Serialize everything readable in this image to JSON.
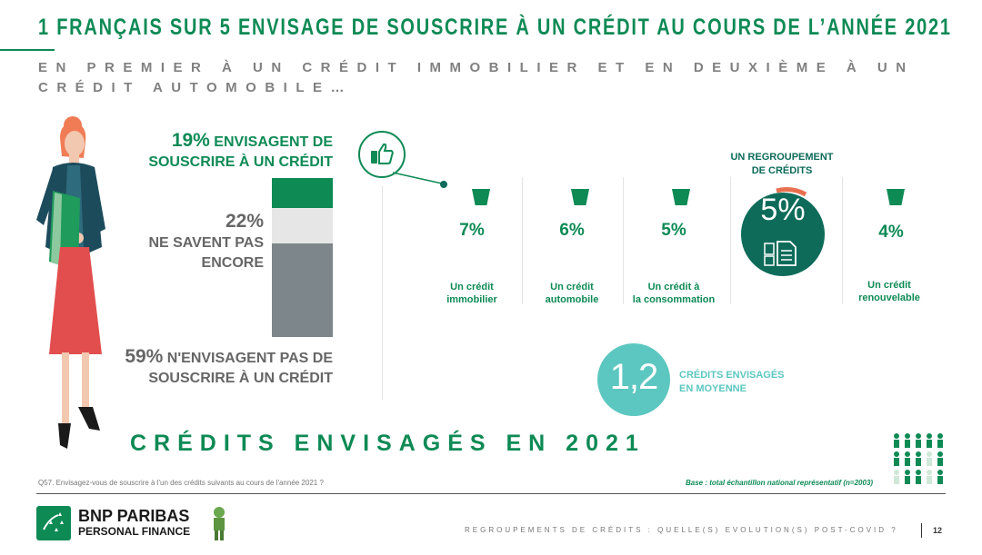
{
  "header": {
    "title": "1 FRANÇAIS SUR 5 ENVISAGE DE SOUSCRIRE À UN CRÉDIT AU COURS DE L’ANNÉE 2021",
    "subtitle": "EN PREMIER À UN CRÉDIT IMMOBILIER ET EN DEUXIÈME À UN CRÉDIT AUTOMOBILE…"
  },
  "stats": {
    "envisage": {
      "pct": "19%",
      "line1": " ENVISAGENT DE",
      "line2": "SOUSCRIRE À UN CRÉDIT",
      "value": 19,
      "color": "#0e8a55"
    },
    "unsure": {
      "pct": "22%",
      "line1": "NE SAVENT PAS",
      "line2": "ENCORE",
      "value": 22,
      "color": "#e6e6e6"
    },
    "not": {
      "pct": "59%",
      "line1": " N'ENVISAGENT PAS DE",
      "line2": "SOUSCRIRE À UN CRÉDIT",
      "value": 59,
      "color": "#7d868a"
    }
  },
  "credits": [
    {
      "pct": "7%",
      "label1": "Un crédit",
      "label2": "immobilier"
    },
    {
      "pct": "6%",
      "label1": "Un crédit",
      "label2": "automobile"
    },
    {
      "pct": "5%",
      "label1": "Un crédit à",
      "label2": "la consommation"
    },
    {
      "pct": "4%",
      "label1": "Un crédit",
      "label2": "renouvelable"
    }
  ],
  "regroupement": {
    "label1": "UN REGROUPEMENT",
    "label2": "DE CRÉDITS",
    "pct": "5%"
  },
  "average": {
    "value": "1,2",
    "label1": "CRÉDITS ENVISAGÉS",
    "label2": "EN MOYENNE"
  },
  "section_title": "CRÉDITS ENVISAGÉS EN 2021",
  "question": "Q57. Envisagez-vous de souscrire à l'un des crédits suivants au cours de l'année 2021 ?",
  "base": "Base : total échantillon national représentatif (n=2003)",
  "footer": {
    "brand1": "BNP PARIBAS",
    "brand2": "PERSONAL FINANCE",
    "tagline": "REGROUPEMENTS DE CRÉDITS : QUELLE(S) EVOLUTION(S) POST-COVID ?",
    "page": "12"
  },
  "colors": {
    "green": "#0e8a55",
    "teal": "#0e6b5a",
    "turquoise": "#5cc7c0",
    "orange": "#e8704f"
  }
}
